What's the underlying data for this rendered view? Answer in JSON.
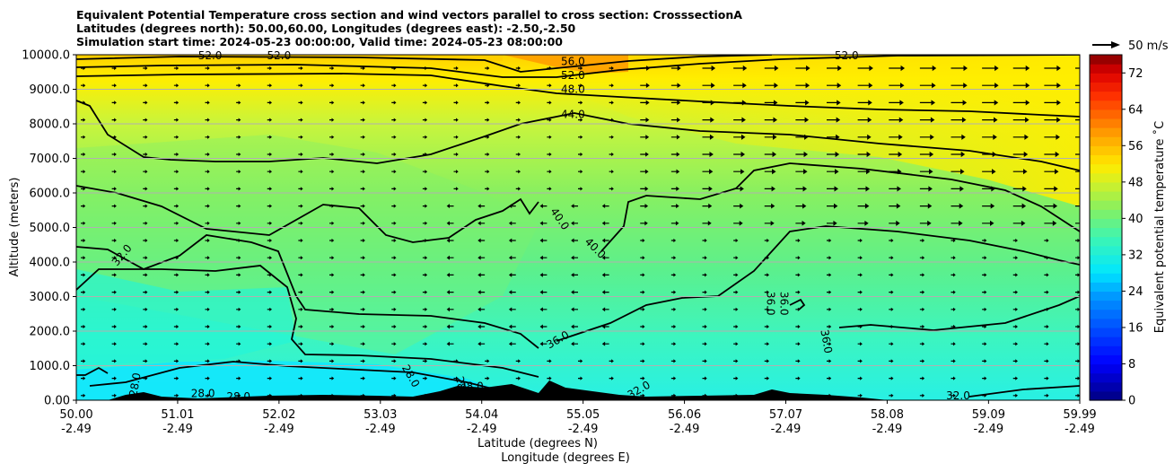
{
  "title_lines": [
    "Equivalent Potential Temperature cross section and wind vectors parallel to cross section: CrosssectionA",
    "Latitudes (degrees north): 50.00,60.00, Longitudes (degrees east): -2.50,-2.50",
    "Simulation start time: 2024-05-23 00:00:00, Valid time: 2024-05-23 08:00:00"
  ],
  "chart_data": {
    "type": "heatmap",
    "variable": "Equivalent potential temperature (contour-filled) with wind vectors",
    "xlabel": "Latitude (degrees N)",
    "xlabel2": "Longitude (degrees E)",
    "ylabel": "Altitude (meters)",
    "x_ticks": [
      {
        "lat": "50.00",
        "lon": "-2.49",
        "v": 0
      },
      {
        "lat": "51.01",
        "lon": "-2.49",
        "v": 1
      },
      {
        "lat": "52.02",
        "lon": "-2.49",
        "v": 2
      },
      {
        "lat": "53.03",
        "lon": "-2.49",
        "v": 3
      },
      {
        "lat": "54.04",
        "lon": "-2.49",
        "v": 4
      },
      {
        "lat": "55.05",
        "lon": "-2.49",
        "v": 5
      },
      {
        "lat": "56.06",
        "lon": "-2.49",
        "v": 6
      },
      {
        "lat": "57.07",
        "lon": "-2.49",
        "v": 7
      },
      {
        "lat": "58.08",
        "lon": "-2.49",
        "v": 8
      },
      {
        "lat": "59.09",
        "lon": "-2.49",
        "v": 9
      },
      {
        "lat": "59.99",
        "lon": "-2.49",
        "v": 9.9
      }
    ],
    "y_ticks": [
      "0.00",
      "1000.0",
      "2000.0",
      "3000.0",
      "4000.0",
      "5000.0",
      "6000.0",
      "7000.0",
      "8000.0",
      "9000.0",
      "10000.0"
    ],
    "ylim": [
      0,
      10000
    ],
    "xlim": [
      0,
      9.9
    ],
    "grid": "horizontal",
    "colorbar": {
      "label": "Equivalent potential temperature ˚C",
      "ticks": [
        "0",
        "8",
        "16",
        "24",
        "32",
        "40",
        "48",
        "56",
        "64",
        "72"
      ],
      "range": [
        0,
        76
      ]
    },
    "contour_labels": [
      {
        "text": "56.0",
        "x": 4.9,
        "y": 9800,
        "rot": 0
      },
      {
        "text": "52.0",
        "x": 4.9,
        "y": 9400,
        "rot": 0
      },
      {
        "text": "48.0",
        "x": 4.9,
        "y": 9000,
        "rot": 0
      },
      {
        "text": "44.0",
        "x": 4.9,
        "y": 8270,
        "rot": 0
      },
      {
        "text": "52.0",
        "x": 1.32,
        "y": 9980,
        "rot": 0
      },
      {
        "text": "52.0",
        "x": 2.0,
        "y": 9980,
        "rot": 0
      },
      {
        "text": "52.0",
        "x": 7.6,
        "y": 9980,
        "rot": 0
      },
      {
        "text": "40.0",
        "x": 4.77,
        "y": 5250,
        "rot": 55
      },
      {
        "text": "40.0",
        "x": 5.12,
        "y": 4400,
        "rot": 45
      },
      {
        "text": "32.0",
        "x": 0.45,
        "y": 4200,
        "rot": -50
      },
      {
        "text": "36.0",
        "x": 4.75,
        "y": 1750,
        "rot": -30
      },
      {
        "text": "36.0",
        "x": 6.85,
        "y": 2800,
        "rot": 90
      },
      {
        "text": "36.0",
        "x": 6.98,
        "y": 2800,
        "rot": 90
      },
      {
        "text": "36.0",
        "x": 7.4,
        "y": 1700,
        "rot": 80
      },
      {
        "text": "28.0",
        "x": 0.58,
        "y": 450,
        "rot": -80
      },
      {
        "text": "28.0",
        "x": 1.25,
        "y": 200,
        "rot": 0
      },
      {
        "text": "28.0",
        "x": 1.6,
        "y": 100,
        "rot": 0
      },
      {
        "text": "28.0",
        "x": 3.3,
        "y": 700,
        "rot": 60
      },
      {
        "text": "28.0",
        "x": 3.8,
        "y": 350,
        "rot": 80
      },
      {
        "text": "28.0",
        "x": 3.9,
        "y": 400,
        "rot": 0
      },
      {
        "text": "32.0",
        "x": 5.55,
        "y": 300,
        "rot": -30
      },
      {
        "text": "32.0",
        "x": 8.7,
        "y": 130,
        "rot": 0
      }
    ],
    "wind_legend": {
      "label": "50 m/s"
    }
  }
}
